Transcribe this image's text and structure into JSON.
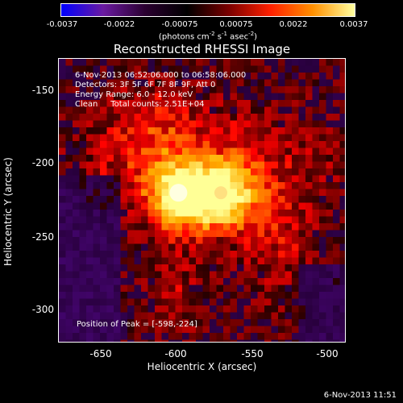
{
  "chart_data": {
    "type": "heatmap",
    "title": "Reconstructed RHESSI Image",
    "xlabel": "Heliocentric X (arcsec)",
    "ylabel": "Heliocentric Y (arcsec)",
    "xlim": [
      -677,
      -488
    ],
    "ylim": [
      -323,
      -135
    ],
    "xticks": [
      "-650",
      "-600",
      "-550",
      "-500"
    ],
    "yticks": [
      "-150",
      "-200",
      "-250",
      "-300"
    ],
    "colorbar": {
      "range": [
        -0.0037,
        0.0037
      ],
      "ticks": [
        "-0.0037",
        "-0.0022",
        "-0.00075",
        "0.00075",
        "0.0022",
        "0.0037"
      ],
      "unit": "(photons cm<sup>-2</sup> s<sup>-1</sup> asec<sup>-2</sup>)",
      "colors": [
        "#0000ff",
        "#6a1aa0",
        "#2a0030",
        "#000000",
        "#7a0000",
        "#ff2000",
        "#ff9000",
        "#ffffa0"
      ]
    },
    "annotations": [
      "6-Nov-2013 06:52:06.000 to 06:58:06.000",
      "Detectors: 3F 5F 6F 7F 8F 9F, Att 0",
      "Energy Range: 6.0 - 12.0 keV",
      "Clean     Total counts: 2.51E+04",
      "Position of Peak = [-598,-224]"
    ],
    "sources": [
      {
        "x": -598,
        "y": -224,
        "peak": 0.0037
      },
      {
        "x": -570,
        "y": -224,
        "peak": 0.003
      }
    ]
  },
  "footer": {
    "timestamp": "6-Nov-2013 11:51"
  }
}
